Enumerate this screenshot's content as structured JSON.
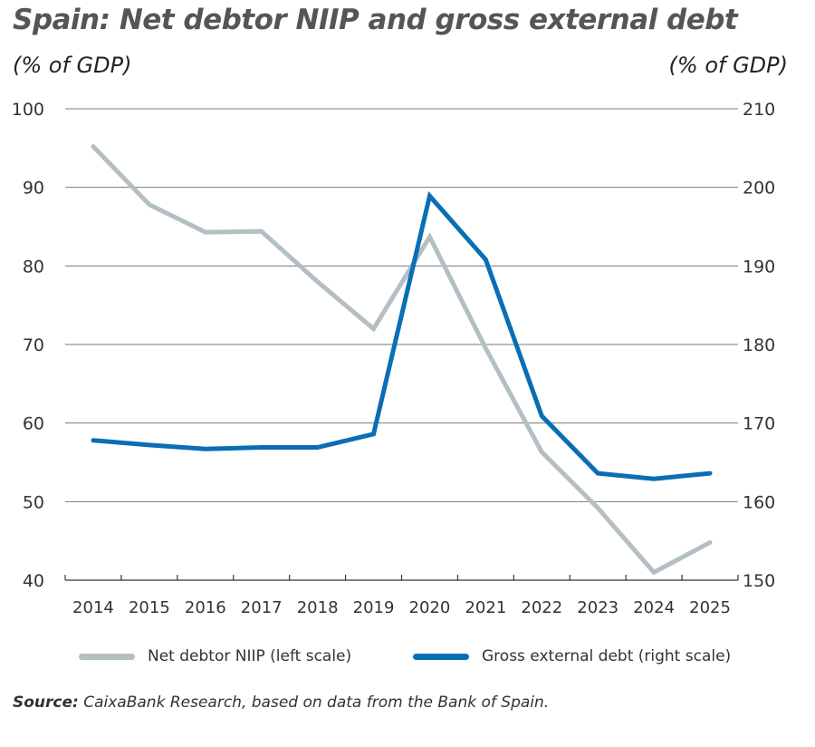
{
  "header": {
    "title": "Spain: Net debtor NIIP and gross external debt",
    "left_unit": "(% of GDP)",
    "right_unit": "(% of GDP)"
  },
  "footer": {
    "source_label": "Source:",
    "source_text": "CaixaBank Research, based on data from the Bank of Spain."
  },
  "chart_data": {
    "type": "line",
    "title": "Spain: Net debtor NIIP and gross external debt",
    "x": [
      "2014",
      "2015",
      "2016",
      "2017",
      "2018",
      "2019",
      "2020",
      "2021",
      "2022",
      "2023",
      "2024",
      "2025"
    ],
    "y_left": {
      "label": "(% of GDP)",
      "range": [
        40,
        100
      ],
      "ticks": [
        40,
        50,
        60,
        70,
        80,
        90,
        100
      ]
    },
    "y_right": {
      "label": "(% of GDP)",
      "range": [
        150,
        210
      ],
      "ticks": [
        150,
        160,
        170,
        180,
        190,
        200,
        210
      ]
    },
    "grid": true,
    "legend_position": "bottom",
    "series": [
      {
        "name": "Net debtor NIIP (left scale)",
        "axis": "left",
        "color": "#b4bfc4",
        "values": [
          95.2,
          87.8,
          84.3,
          84.4,
          78.0,
          72.0,
          83.7,
          69.5,
          56.3,
          49.2,
          41.0,
          44.8
        ]
      },
      {
        "name": "Gross external debt (right scale)",
        "axis": "right",
        "color": "#0a6eb4",
        "values": [
          167.8,
          167.2,
          166.7,
          166.9,
          166.9,
          168.6,
          198.9,
          190.8,
          170.9,
          163.6,
          162.9,
          163.6
        ]
      }
    ]
  }
}
